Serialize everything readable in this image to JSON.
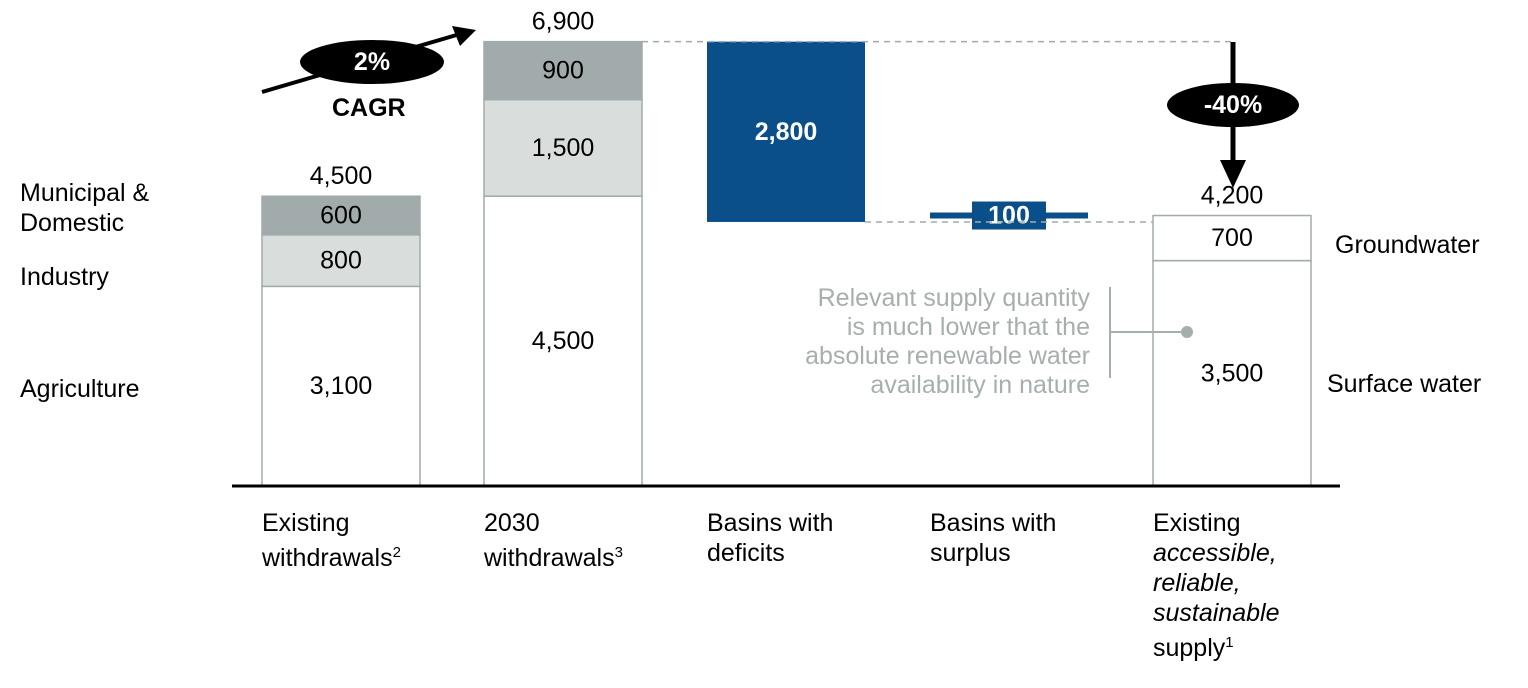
{
  "chart_data": {
    "type": "bar",
    "subtype": "waterfall",
    "categories": [
      "Existing withdrawals",
      "2030 withdrawals",
      "Basins with deficits",
      "Basins with surplus",
      "Existing accessible, reliable, sustainable supply"
    ],
    "category_label_parts": [
      {
        "lines": [
          "Existing",
          "withdrawals"
        ],
        "sup": "2"
      },
      {
        "lines": [
          "2030",
          "withdrawals"
        ],
        "sup": "3"
      },
      {
        "lines": [
          "Basins with",
          "deficits"
        ]
      },
      {
        "lines": [
          "Basins with",
          "surplus"
        ]
      },
      {
        "lines": [
          "Existing",
          "accessible,",
          "reliable,",
          "sustainable",
          "supply"
        ],
        "italic_lines": [
          1,
          2,
          3
        ],
        "sup": "1"
      }
    ],
    "series": [
      {
        "name": "Agriculture",
        "values": [
          3100,
          4500,
          null,
          null,
          null
        ]
      },
      {
        "name": "Industry",
        "values": [
          800,
          1500,
          null,
          null,
          null
        ]
      },
      {
        "name": "Municipal & Domestic",
        "values": [
          600,
          900,
          null,
          null,
          null
        ]
      }
    ],
    "supply_series": [
      {
        "name": "Surface water",
        "value": 3500
      },
      {
        "name": "Groundwater",
        "value": 700
      }
    ],
    "totals": [
      "4,500",
      "6,900",
      null,
      null,
      "4,200"
    ],
    "segment_labels": {
      "existing": [
        "3,100",
        "800",
        "600"
      ],
      "withdrawals_2030": [
        "4,500",
        "1,500",
        "900"
      ],
      "supply": [
        "3,500",
        "700"
      ]
    },
    "deficits": {
      "value": 2800,
      "label": "2,800"
    },
    "surplus": {
      "value": 100,
      "label": "100"
    },
    "cagr": {
      "value": "2%",
      "label": "CAGR"
    },
    "gap": {
      "value": "-40%"
    },
    "left_labels": [
      "Municipal &\nDomestic",
      "Industry",
      "Agriculture"
    ],
    "right_labels": [
      "Groundwater",
      "Surface water"
    ],
    "note": "Relevant supply quantity\nis much lower that the\nabsolute renewable water\navailability in nature",
    "ylim": [
      0,
      7000
    ],
    "colors": {
      "municipal": "#a2abab",
      "industry": "#d9dedd",
      "agriculture": "#ffffff",
      "outline": "#a2abab",
      "deficit": "#0a4f8a",
      "annotation": "#000000",
      "note": "#a6aeae"
    }
  }
}
